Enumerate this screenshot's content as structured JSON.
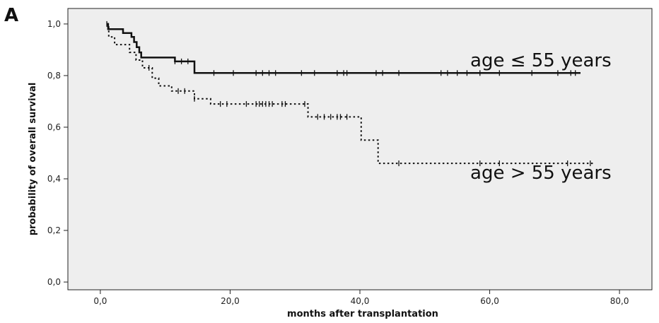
{
  "panel_label": "A",
  "chart_data": {
    "type": "line",
    "subtype": "kaplan-meier",
    "title": "",
    "xlabel": "months after transplantation",
    "ylabel": "probability of overall survival",
    "xlim": [
      -5,
      85
    ],
    "ylim": [
      -0.03,
      1.06
    ],
    "x_ticks": [
      0,
      20,
      40,
      60,
      80
    ],
    "x_tick_labels": [
      "0,0",
      "20,0",
      "40,0",
      "60,0",
      "80,0"
    ],
    "y_ticks": [
      0,
      0.2,
      0.4,
      0.6,
      0.8,
      1.0
    ],
    "y_tick_labels": [
      "0,0",
      "0,2",
      "0,4",
      "0,6",
      "0,8",
      "1,0"
    ],
    "grid": false,
    "background": "#eeeeee",
    "series": [
      {
        "name": "age ≤ 55 years",
        "style": "solid",
        "color": "#111111",
        "steps": [
          [
            1,
            1.0
          ],
          [
            1.2,
            0.98
          ],
          [
            3.5,
            0.965
          ],
          [
            4.8,
            0.95
          ],
          [
            5.2,
            0.93
          ],
          [
            5.6,
            0.91
          ],
          [
            6,
            0.89
          ],
          [
            6.3,
            0.87
          ],
          [
            11.5,
            0.855
          ],
          [
            14.5,
            0.81
          ],
          [
            74,
            0.81
          ]
        ],
        "censor_x": [
          1,
          11.5,
          12.5,
          13.5,
          17.5,
          20.5,
          24,
          25,
          26,
          27,
          31,
          33,
          36.5,
          37.5,
          38,
          42.5,
          43.5,
          46,
          52.5,
          53.5,
          55,
          56.5,
          58.5,
          61.5,
          66.5,
          70.5,
          72.5,
          73.2
        ]
      },
      {
        "name": "age > 55 years",
        "style": "dotted",
        "color": "#111111",
        "steps": [
          [
            1,
            1.0
          ],
          [
            1.3,
            0.95
          ],
          [
            2.2,
            0.92
          ],
          [
            4.5,
            0.89
          ],
          [
            5.5,
            0.86
          ],
          [
            6.5,
            0.83
          ],
          [
            8,
            0.79
          ],
          [
            9,
            0.76
          ],
          [
            11,
            0.74
          ],
          [
            14.5,
            0.71
          ],
          [
            17,
            0.69
          ],
          [
            32,
            0.64
          ],
          [
            40.2,
            0.55
          ],
          [
            42.8,
            0.46
          ],
          [
            76,
            0.46
          ]
        ],
        "censor_x": [
          7.5,
          12,
          13,
          14.5,
          18.5,
          19.5,
          22.5,
          24,
          24.5,
          25,
          25.5,
          26,
          26.5,
          28,
          28.5,
          31.5,
          33.5,
          34.5,
          35.5,
          36.5,
          37,
          38,
          46,
          58.5,
          61.5,
          72,
          75.5
        ]
      }
    ],
    "annotations": [
      {
        "text": "age ≤ 55 years",
        "x": 57,
        "y": 0.835
      },
      {
        "text": "age > 55 years",
        "x": 57,
        "y": 0.4
      }
    ]
  }
}
